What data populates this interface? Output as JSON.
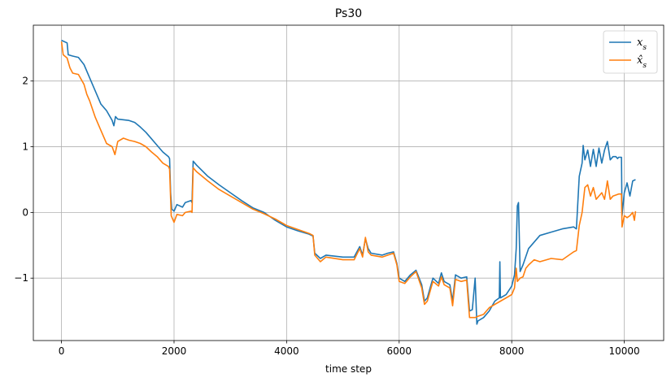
{
  "chart_data": {
    "type": "line",
    "title": "Ps30",
    "xlabel": "time step",
    "ylabel": "",
    "xlim": [
      -500,
      10700
    ],
    "ylim": [
      -1.95,
      2.85
    ],
    "xticks": [
      0,
      2000,
      4000,
      6000,
      8000,
      10000
    ],
    "xtick_labels": [
      "0",
      "2000",
      "4000",
      "6000",
      "8000",
      "10000"
    ],
    "yticks": [
      -1,
      0,
      1,
      2
    ],
    "ytick_labels": [
      "−1",
      "0",
      "1",
      "2"
    ],
    "grid": true,
    "legend_position": "top-right",
    "series": [
      {
        "name": "x_s",
        "label_base": "x",
        "label_sub": "s",
        "color": "#1f77b4",
        "points": [
          [
            0,
            2.62
          ],
          [
            100,
            2.58
          ],
          [
            120,
            2.4
          ],
          [
            200,
            2.38
          ],
          [
            300,
            2.36
          ],
          [
            400,
            2.25
          ],
          [
            500,
            2.05
          ],
          [
            600,
            1.85
          ],
          [
            700,
            1.65
          ],
          [
            800,
            1.55
          ],
          [
            900,
            1.4
          ],
          [
            930,
            1.32
          ],
          [
            960,
            1.46
          ],
          [
            1000,
            1.42
          ],
          [
            1200,
            1.4
          ],
          [
            1300,
            1.37
          ],
          [
            1400,
            1.3
          ],
          [
            1500,
            1.22
          ],
          [
            1600,
            1.12
          ],
          [
            1700,
            1.02
          ],
          [
            1800,
            0.92
          ],
          [
            1900,
            0.85
          ],
          [
            1920,
            0.82
          ],
          [
            1940,
            0.3
          ],
          [
            1960,
            0.05
          ],
          [
            2000,
            0.02
          ],
          [
            2050,
            0.12
          ],
          [
            2150,
            0.08
          ],
          [
            2200,
            0.15
          ],
          [
            2300,
            0.18
          ],
          [
            2320,
            0.15
          ],
          [
            2340,
            0.78
          ],
          [
            2400,
            0.72
          ],
          [
            2600,
            0.55
          ],
          [
            2800,
            0.42
          ],
          [
            3000,
            0.3
          ],
          [
            3200,
            0.18
          ],
          [
            3400,
            0.07
          ],
          [
            3600,
            0.0
          ],
          [
            3800,
            -0.12
          ],
          [
            4000,
            -0.22
          ],
          [
            4200,
            -0.28
          ],
          [
            4400,
            -0.33
          ],
          [
            4470,
            -0.36
          ],
          [
            4500,
            -0.62
          ],
          [
            4600,
            -0.7
          ],
          [
            4700,
            -0.65
          ],
          [
            5000,
            -0.68
          ],
          [
            5200,
            -0.68
          ],
          [
            5300,
            -0.52
          ],
          [
            5350,
            -0.65
          ],
          [
            5400,
            -0.4
          ],
          [
            5450,
            -0.55
          ],
          [
            5500,
            -0.62
          ],
          [
            5700,
            -0.65
          ],
          [
            5800,
            -0.62
          ],
          [
            5900,
            -0.6
          ],
          [
            5960,
            -0.78
          ],
          [
            6000,
            -1.0
          ],
          [
            6100,
            -1.05
          ],
          [
            6200,
            -0.95
          ],
          [
            6300,
            -0.88
          ],
          [
            6400,
            -1.1
          ],
          [
            6450,
            -1.35
          ],
          [
            6500,
            -1.3
          ],
          [
            6550,
            -1.15
          ],
          [
            6600,
            -1.0
          ],
          [
            6700,
            -1.08
          ],
          [
            6750,
            -0.92
          ],
          [
            6800,
            -1.05
          ],
          [
            6900,
            -1.1
          ],
          [
            6950,
            -1.35
          ],
          [
            7000,
            -0.95
          ],
          [
            7100,
            -1.0
          ],
          [
            7200,
            -0.98
          ],
          [
            7250,
            -1.5
          ],
          [
            7300,
            -1.48
          ],
          [
            7350,
            -1.0
          ],
          [
            7380,
            -1.7
          ],
          [
            7400,
            -1.65
          ],
          [
            7500,
            -1.6
          ],
          [
            7600,
            -1.5
          ],
          [
            7700,
            -1.35
          ],
          [
            7780,
            -1.3
          ],
          [
            7790,
            -0.75
          ],
          [
            7800,
            -1.3
          ],
          [
            7900,
            -1.25
          ],
          [
            8000,
            -1.12
          ],
          [
            8050,
            -0.95
          ],
          [
            8080,
            -0.55
          ],
          [
            8100,
            0.1
          ],
          [
            8120,
            0.15
          ],
          [
            8150,
            -0.9
          ],
          [
            8200,
            -0.8
          ],
          [
            8300,
            -0.55
          ],
          [
            8400,
            -0.45
          ],
          [
            8500,
            -0.35
          ],
          [
            8700,
            -0.3
          ],
          [
            8900,
            -0.25
          ],
          [
            9100,
            -0.22
          ],
          [
            9150,
            -0.25
          ],
          [
            9200,
            0.55
          ],
          [
            9250,
            0.75
          ],
          [
            9270,
            1.02
          ],
          [
            9300,
            0.8
          ],
          [
            9350,
            0.95
          ],
          [
            9400,
            0.7
          ],
          [
            9450,
            0.96
          ],
          [
            9500,
            0.7
          ],
          [
            9550,
            0.98
          ],
          [
            9600,
            0.75
          ],
          [
            9650,
            0.95
          ],
          [
            9700,
            1.08
          ],
          [
            9750,
            0.8
          ],
          [
            9800,
            0.85
          ],
          [
            9850,
            0.85
          ],
          [
            9880,
            0.82
          ],
          [
            9900,
            0.84
          ],
          [
            9950,
            0.84
          ],
          [
            9960,
            -0.05
          ],
          [
            10000,
            0.3
          ],
          [
            10050,
            0.45
          ],
          [
            10100,
            0.25
          ],
          [
            10150,
            0.48
          ],
          [
            10200,
            0.5
          ]
        ]
      },
      {
        "name": "x̂_s",
        "label_base": "x̂",
        "label_sub": "s",
        "color": "#ff7f0e",
        "points": [
          [
            0,
            2.6
          ],
          [
            30,
            2.4
          ],
          [
            100,
            2.35
          ],
          [
            150,
            2.2
          ],
          [
            200,
            2.12
          ],
          [
            300,
            2.1
          ],
          [
            400,
            1.95
          ],
          [
            450,
            1.8
          ],
          [
            500,
            1.7
          ],
          [
            600,
            1.45
          ],
          [
            700,
            1.25
          ],
          [
            800,
            1.05
          ],
          [
            900,
            1.0
          ],
          [
            950,
            0.88
          ],
          [
            1000,
            1.08
          ],
          [
            1100,
            1.13
          ],
          [
            1200,
            1.1
          ],
          [
            1300,
            1.08
          ],
          [
            1400,
            1.05
          ],
          [
            1500,
            1.0
          ],
          [
            1600,
            0.92
          ],
          [
            1700,
            0.85
          ],
          [
            1800,
            0.75
          ],
          [
            1900,
            0.7
          ],
          [
            1920,
            0.66
          ],
          [
            1950,
            -0.05
          ],
          [
            2000,
            -0.15
          ],
          [
            2050,
            -0.03
          ],
          [
            2150,
            -0.05
          ],
          [
            2200,
            0.0
          ],
          [
            2300,
            0.02
          ],
          [
            2320,
            0.0
          ],
          [
            2340,
            0.68
          ],
          [
            2400,
            0.62
          ],
          [
            2600,
            0.48
          ],
          [
            2800,
            0.35
          ],
          [
            3000,
            0.25
          ],
          [
            3200,
            0.15
          ],
          [
            3400,
            0.05
          ],
          [
            3600,
            -0.02
          ],
          [
            3800,
            -0.1
          ],
          [
            4000,
            -0.2
          ],
          [
            4200,
            -0.26
          ],
          [
            4400,
            -0.32
          ],
          [
            4470,
            -0.35
          ],
          [
            4500,
            -0.65
          ],
          [
            4600,
            -0.75
          ],
          [
            4700,
            -0.68
          ],
          [
            5000,
            -0.72
          ],
          [
            5200,
            -0.72
          ],
          [
            5300,
            -0.55
          ],
          [
            5350,
            -0.68
          ],
          [
            5400,
            -0.38
          ],
          [
            5450,
            -0.6
          ],
          [
            5500,
            -0.65
          ],
          [
            5700,
            -0.68
          ],
          [
            5800,
            -0.65
          ],
          [
            5900,
            -0.62
          ],
          [
            5960,
            -0.8
          ],
          [
            6000,
            -1.05
          ],
          [
            6100,
            -1.08
          ],
          [
            6200,
            -0.98
          ],
          [
            6300,
            -0.9
          ],
          [
            6400,
            -1.15
          ],
          [
            6450,
            -1.4
          ],
          [
            6500,
            -1.35
          ],
          [
            6550,
            -1.2
          ],
          [
            6600,
            -1.05
          ],
          [
            6700,
            -1.12
          ],
          [
            6750,
            -0.98
          ],
          [
            6800,
            -1.1
          ],
          [
            6900,
            -1.15
          ],
          [
            6950,
            -1.42
          ],
          [
            7000,
            -1.02
          ],
          [
            7100,
            -1.05
          ],
          [
            7200,
            -1.03
          ],
          [
            7250,
            -1.6
          ],
          [
            7350,
            -1.6
          ],
          [
            7400,
            -1.58
          ],
          [
            7500,
            -1.55
          ],
          [
            7600,
            -1.45
          ],
          [
            7700,
            -1.4
          ],
          [
            7900,
            -1.3
          ],
          [
            8000,
            -1.25
          ],
          [
            8050,
            -1.15
          ],
          [
            8080,
            -0.85
          ],
          [
            8100,
            -1.05
          ],
          [
            8150,
            -1.0
          ],
          [
            8200,
            -0.98
          ],
          [
            8250,
            -0.85
          ],
          [
            8300,
            -0.8
          ],
          [
            8400,
            -0.72
          ],
          [
            8500,
            -0.75
          ],
          [
            8700,
            -0.7
          ],
          [
            8900,
            -0.72
          ],
          [
            9100,
            -0.6
          ],
          [
            9150,
            -0.58
          ],
          [
            9200,
            -0.2
          ],
          [
            9250,
            0.0
          ],
          [
            9300,
            0.38
          ],
          [
            9350,
            0.42
          ],
          [
            9400,
            0.25
          ],
          [
            9450,
            0.38
          ],
          [
            9500,
            0.2
          ],
          [
            9600,
            0.3
          ],
          [
            9650,
            0.2
          ],
          [
            9700,
            0.48
          ],
          [
            9750,
            0.2
          ],
          [
            9800,
            0.25
          ],
          [
            9900,
            0.28
          ],
          [
            9950,
            0.28
          ],
          [
            9960,
            -0.22
          ],
          [
            10000,
            -0.05
          ],
          [
            10050,
            -0.08
          ],
          [
            10100,
            -0.05
          ],
          [
            10150,
            0.0
          ],
          [
            10180,
            -0.12
          ],
          [
            10200,
            0.02
          ]
        ]
      }
    ]
  }
}
